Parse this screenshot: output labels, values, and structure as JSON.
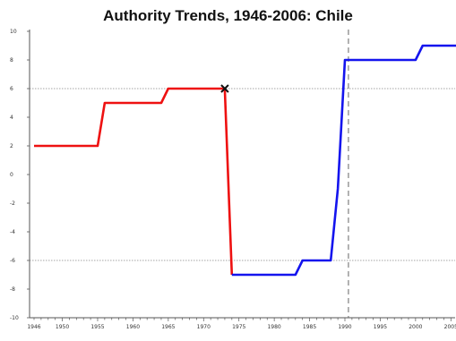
{
  "chart_data": {
    "type": "line",
    "title": "Authority Trends, 1946-2006: Chile",
    "xlabel": "",
    "ylabel": "",
    "xlim": [
      1946,
      2008
    ],
    "ylim": [
      -10,
      10
    ],
    "x_ticks": [
      1946,
      1950,
      1955,
      1960,
      1965,
      1970,
      1975,
      1980,
      1985,
      1990,
      1995,
      2000,
      2005
    ],
    "y_ticks": [
      -10,
      -8,
      -6,
      -4,
      -2,
      0,
      2,
      4,
      6,
      8,
      10
    ],
    "reference_lines_y": [
      6,
      -6
    ],
    "reference_line_x": 1990.5,
    "marker": {
      "x": 1973,
      "y": 6,
      "symbol": "X"
    },
    "grid": false,
    "series": [
      {
        "color": "#ee1111",
        "points": [
          [
            1946,
            2
          ],
          [
            1955,
            2
          ],
          [
            1956,
            5
          ],
          [
            1964,
            5
          ],
          [
            1965,
            6
          ],
          [
            1973,
            6
          ],
          [
            1974,
            -7
          ]
        ]
      },
      {
        "color": "#1414ee",
        "points": [
          [
            1974,
            -7
          ],
          [
            1983,
            -7
          ],
          [
            1984,
            -6
          ],
          [
            1988,
            -6
          ],
          [
            1989,
            -1
          ],
          [
            1990,
            8
          ],
          [
            2000,
            8
          ],
          [
            2001,
            9
          ],
          [
            2006,
            9
          ],
          [
            2007,
            10
          ]
        ]
      }
    ]
  }
}
